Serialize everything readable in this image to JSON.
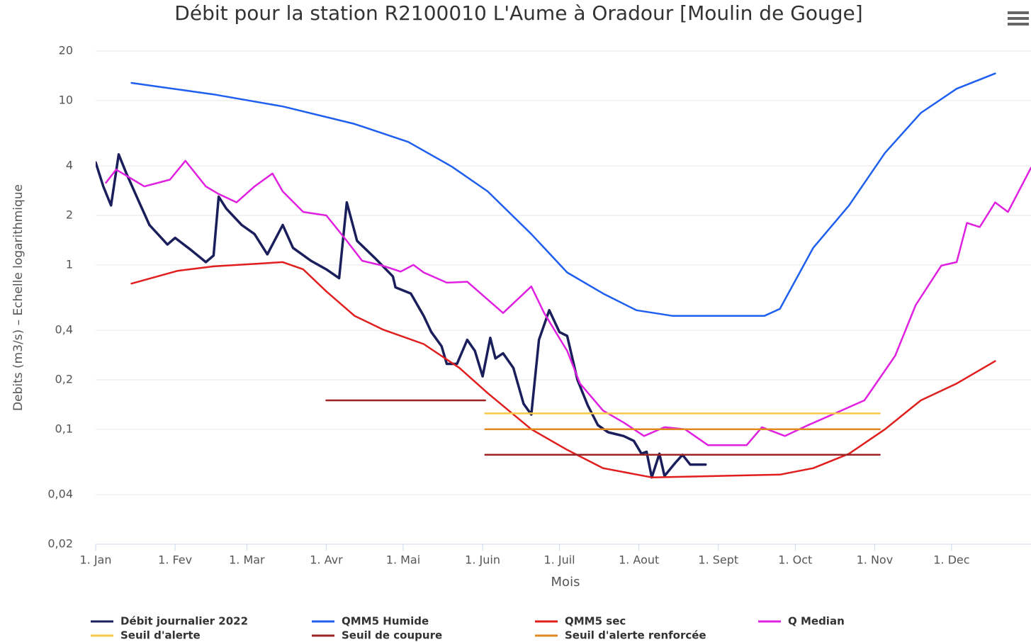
{
  "chart_data": {
    "type": "line",
    "title": "Débit pour la station R2100010 L'Aume à Oradour [Moulin de Gouge]",
    "x_label": "Mois",
    "y_label": "Debits (m3/s) – Echelle logarithmique",
    "log_y": true,
    "grid": true,
    "legend": "bottom",
    "xlim": [
      0,
      365
    ],
    "xticks": [
      {
        "value": 0,
        "label": "1. Jan"
      },
      {
        "value": 31,
        "label": "1. Fev"
      },
      {
        "value": 59,
        "label": "1. Mar"
      },
      {
        "value": 90,
        "label": "1. Avr"
      },
      {
        "value": 120,
        "label": "1. Mai"
      },
      {
        "value": 151,
        "label": "1. Juin"
      },
      {
        "value": 181,
        "label": "1. Juil"
      },
      {
        "value": 212,
        "label": "1. Aout"
      },
      {
        "value": 243,
        "label": "1. Sept"
      },
      {
        "value": 273,
        "label": "1. Oct"
      },
      {
        "value": 304,
        "label": "1. Nov"
      },
      {
        "value": 334,
        "label": "1. Dec"
      }
    ],
    "ylim": [
      0.02,
      20
    ],
    "yticks": [
      20,
      10,
      4,
      2,
      1,
      {
        "value": 0.4,
        "label": "0,4"
      },
      {
        "value": 0.2,
        "label": "0,2"
      },
      {
        "value": 0.1,
        "label": "0,1"
      },
      {
        "value": 0.04,
        "label": "0,04"
      },
      {
        "value": 0.02,
        "label": "0,02"
      }
    ],
    "series": [
      {
        "name": "Débit journalier 2022",
        "color": "#1a1f5c",
        "width": 3.5,
        "x": [
          0,
          3,
          6,
          9,
          12,
          17,
          21,
          28,
          31,
          37,
          43,
          46,
          48,
          51,
          57,
          62,
          67,
          73,
          77,
          84,
          90,
          95,
          98,
          102,
          109,
          116,
          117,
          123,
          128,
          131,
          135,
          137,
          141,
          145,
          148,
          151,
          154,
          156,
          159,
          163,
          167,
          170,
          173,
          177,
          181,
          184,
          188,
          192,
          196,
          200,
          206,
          210,
          213,
          215,
          217,
          220,
          222,
          226,
          229,
          232,
          238
        ],
        "values": [
          4.2,
          3.0,
          2.3,
          4.7,
          3.6,
          2.4,
          1.75,
          1.33,
          1.46,
          1.24,
          1.04,
          1.14,
          2.6,
          2.2,
          1.75,
          1.54,
          1.16,
          1.75,
          1.27,
          1.06,
          0.94,
          0.83,
          2.4,
          1.4,
          1.1,
          0.85,
          0.73,
          0.67,
          0.49,
          0.39,
          0.32,
          0.25,
          0.25,
          0.35,
          0.3,
          0.21,
          0.36,
          0.27,
          0.29,
          0.236,
          0.143,
          0.123,
          0.35,
          0.53,
          0.39,
          0.37,
          0.2,
          0.14,
          0.106,
          0.096,
          0.091,
          0.085,
          0.071,
          0.073,
          0.051,
          0.071,
          0.052,
          0.062,
          0.07,
          0.061,
          0.061
        ]
      },
      {
        "name": "QMM5 Humide",
        "color": "#1f5ff0",
        "width": 2.5,
        "x": [
          14,
          46,
          73,
          101,
          122,
          139,
          153,
          170,
          184,
          198,
          211,
          225,
          261,
          267,
          280,
          294,
          308,
          322,
          336,
          351
        ],
        "values": [
          12.8,
          10.9,
          9.2,
          7.2,
          5.6,
          3.96,
          2.8,
          1.54,
          0.9,
          0.67,
          0.53,
          0.49,
          0.49,
          0.54,
          1.27,
          2.3,
          4.8,
          8.4,
          11.8,
          14.6
        ]
      },
      {
        "name": "QMM5 sec",
        "color": "#e01e1e",
        "width": 2.5,
        "x": [
          14,
          32,
          46,
          73,
          81,
          90,
          101,
          112,
          128,
          142,
          153,
          170,
          184,
          198,
          217,
          267,
          280,
          294,
          308,
          322,
          336,
          351
        ],
        "values": [
          0.77,
          0.92,
          0.98,
          1.04,
          0.94,
          0.69,
          0.49,
          0.405,
          0.33,
          0.236,
          0.166,
          0.1,
          0.075,
          0.058,
          0.051,
          0.053,
          0.058,
          0.071,
          0.1,
          0.15,
          0.19,
          0.26
        ]
      },
      {
        "name": "Q Median",
        "color": "#e020e0",
        "width": 2.5,
        "x": [
          4,
          8,
          19,
          29,
          35,
          43,
          48,
          55,
          62,
          69,
          73,
          81,
          90,
          98,
          104,
          112,
          119,
          124,
          128,
          137,
          145,
          159,
          170,
          175,
          184,
          189,
          198,
          206,
          214,
          222,
          230,
          239,
          254,
          260,
          269,
          278,
          291,
          300,
          312,
          320,
          330,
          336,
          340,
          345,
          351,
          356,
          365
        ],
        "values": [
          3.16,
          3.8,
          3.0,
          3.3,
          4.3,
          3.0,
          2.7,
          2.4,
          3.0,
          3.6,
          2.8,
          2.1,
          2.0,
          1.4,
          1.06,
          0.99,
          0.91,
          1.0,
          0.9,
          0.78,
          0.79,
          0.51,
          0.74,
          0.51,
          0.3,
          0.19,
          0.13,
          0.11,
          0.091,
          0.103,
          0.1,
          0.08,
          0.08,
          0.103,
          0.091,
          0.106,
          0.13,
          0.15,
          0.28,
          0.57,
          0.99,
          1.04,
          1.8,
          1.7,
          2.4,
          2.1,
          3.9
        ]
      },
      {
        "name": "Seuil d'alerte",
        "color": "#f7c948",
        "width": 2.5,
        "x": [
          152,
          306
        ],
        "values": [
          0.125,
          0.125
        ]
      },
      {
        "name": "Seuil de coupure",
        "color": "#9e2424",
        "width": 2.5,
        "x": [
          90,
          152,
          152,
          152,
          306
        ],
        "values": [
          0.15,
          0.15,
          null,
          0.07,
          0.07
        ]
      },
      {
        "name": "Seuil d'alerte renforcée",
        "color": "#e08a1e",
        "width": 2.5,
        "x": [
          152,
          306
        ],
        "values": [
          0.1,
          0.1
        ]
      }
    ]
  }
}
